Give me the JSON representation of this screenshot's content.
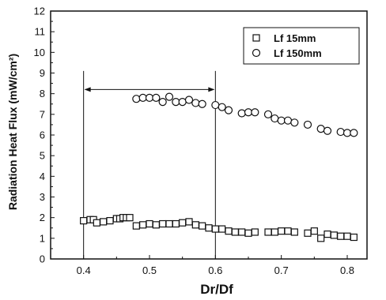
{
  "chart_data": {
    "type": "scatter",
    "xlabel": "Dr/Df",
    "ylabel": "Radiation Heat Flux (mW/cm²)",
    "xlim": [
      0.35,
      0.83
    ],
    "ylim": [
      0,
      12
    ],
    "x_ticks": [
      "0.4",
      "0.5",
      "0.6",
      "0.7",
      "0.8"
    ],
    "y_ticks": [
      "0",
      "1",
      "2",
      "3",
      "4",
      "5",
      "6",
      "7",
      "8",
      "9",
      "10",
      "11",
      "12"
    ],
    "grid": false,
    "legend_position": "top-right",
    "annotation": {
      "type": "range-bracket",
      "x_from": 0.4,
      "x_to": 0.6,
      "y": 8.2,
      "y_bottom": 0
    },
    "series": [
      {
        "name": "Lf 15mm",
        "marker": "square",
        "points": [
          [
            0.4,
            1.85
          ],
          [
            0.41,
            1.9
          ],
          [
            0.415,
            1.9
          ],
          [
            0.42,
            1.75
          ],
          [
            0.43,
            1.8
          ],
          [
            0.44,
            1.85
          ],
          [
            0.45,
            1.95
          ],
          [
            0.455,
            1.95
          ],
          [
            0.46,
            2.0
          ],
          [
            0.465,
            2.0
          ],
          [
            0.47,
            2.0
          ],
          [
            0.48,
            1.6
          ],
          [
            0.49,
            1.65
          ],
          [
            0.5,
            1.7
          ],
          [
            0.51,
            1.65
          ],
          [
            0.52,
            1.7
          ],
          [
            0.53,
            1.7
          ],
          [
            0.54,
            1.7
          ],
          [
            0.55,
            1.75
          ],
          [
            0.56,
            1.8
          ],
          [
            0.57,
            1.65
          ],
          [
            0.58,
            1.6
          ],
          [
            0.59,
            1.5
          ],
          [
            0.6,
            1.45
          ],
          [
            0.61,
            1.45
          ],
          [
            0.62,
            1.35
          ],
          [
            0.63,
            1.3
          ],
          [
            0.64,
            1.3
          ],
          [
            0.65,
            1.25
          ],
          [
            0.66,
            1.3
          ],
          [
            0.68,
            1.3
          ],
          [
            0.69,
            1.3
          ],
          [
            0.7,
            1.35
          ],
          [
            0.71,
            1.35
          ],
          [
            0.72,
            1.3
          ],
          [
            0.74,
            1.25
          ],
          [
            0.75,
            1.35
          ],
          [
            0.76,
            1.0
          ],
          [
            0.77,
            1.2
          ],
          [
            0.78,
            1.15
          ],
          [
            0.79,
            1.1
          ],
          [
            0.8,
            1.1
          ],
          [
            0.81,
            1.05
          ]
        ]
      },
      {
        "name": "Lf 150mm",
        "marker": "circle",
        "points": [
          [
            0.48,
            7.75
          ],
          [
            0.49,
            7.8
          ],
          [
            0.5,
            7.8
          ],
          [
            0.51,
            7.8
          ],
          [
            0.52,
            7.6
          ],
          [
            0.53,
            7.85
          ],
          [
            0.54,
            7.6
          ],
          [
            0.55,
            7.6
          ],
          [
            0.56,
            7.7
          ],
          [
            0.57,
            7.55
          ],
          [
            0.58,
            7.5
          ],
          [
            0.6,
            7.45
          ],
          [
            0.61,
            7.35
          ],
          [
            0.62,
            7.2
          ],
          [
            0.64,
            7.05
          ],
          [
            0.65,
            7.1
          ],
          [
            0.66,
            7.1
          ],
          [
            0.68,
            7.0
          ],
          [
            0.69,
            6.8
          ],
          [
            0.7,
            6.7
          ],
          [
            0.71,
            6.7
          ],
          [
            0.72,
            6.6
          ],
          [
            0.74,
            6.5
          ],
          [
            0.76,
            6.3
          ],
          [
            0.77,
            6.2
          ],
          [
            0.79,
            6.15
          ],
          [
            0.8,
            6.1
          ],
          [
            0.81,
            6.1
          ]
        ]
      }
    ]
  },
  "legend": {
    "items": [
      {
        "label": "Lf 15mm",
        "marker": "square"
      },
      {
        "label": "Lf 150mm",
        "marker": "circle"
      }
    ]
  }
}
